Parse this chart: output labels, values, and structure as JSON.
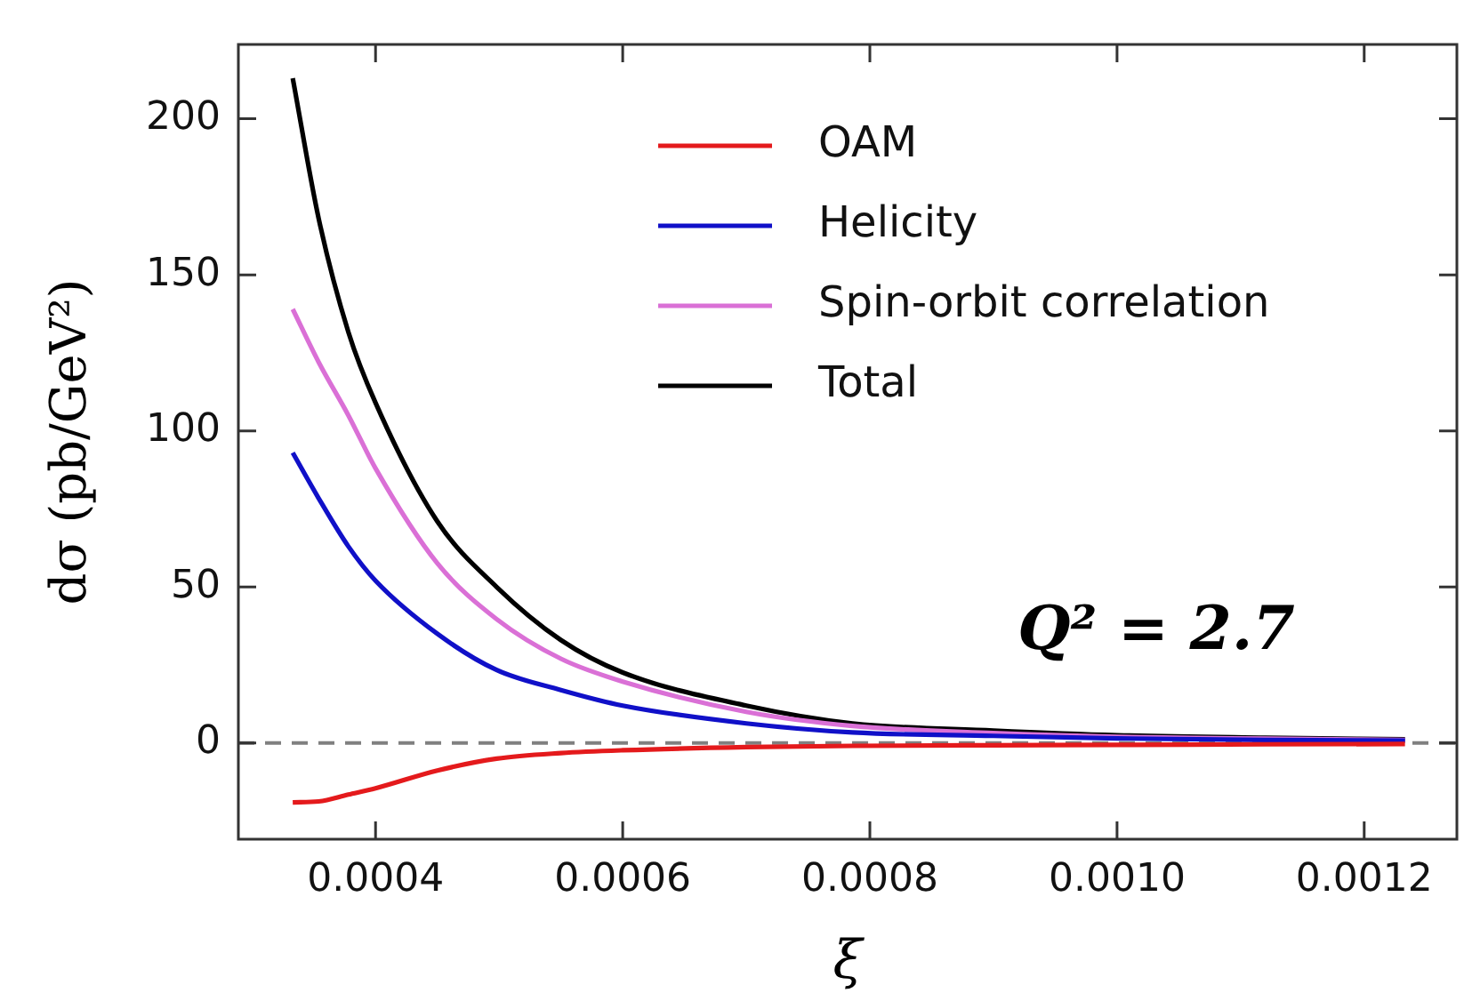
{
  "chart_data": {
    "type": "line",
    "xlabel": "ξ",
    "ylabel": "dσ (pb/GeV²)",
    "x": [
      0.000333,
      0.000354,
      0.000378,
      0.0004,
      0.00045,
      0.000498,
      0.00055,
      0.0006,
      0.0007,
      0.000786,
      0.0009,
      0.001,
      0.00112,
      0.001233
    ],
    "series": [
      {
        "name": "OAM",
        "color": "#e41a1c",
        "values": [
          -19,
          -18.7,
          -16.5,
          -14.5,
          -8.8,
          -5,
          -3.2,
          -2.3,
          -1.3,
          -0.9,
          -0.7,
          -0.6,
          -0.4,
          -0.3
        ]
      },
      {
        "name": "Helicity",
        "color": "#1010c8",
        "values": [
          93,
          78.4,
          63,
          52,
          35,
          23.4,
          17,
          12,
          6.3,
          3.4,
          2.3,
          1.5,
          1,
          0.8
        ]
      },
      {
        "name": "Spin-orbit correlation",
        "color": "#da70d6",
        "values": [
          139,
          122,
          105,
          88,
          57.6,
          39.7,
          27,
          19.7,
          10,
          5.5,
          3.2,
          2,
          1.4,
          1
        ]
      },
      {
        "name": "Total",
        "color": "#000000",
        "values": [
          213,
          168,
          131.7,
          109,
          71,
          50,
          33,
          22.6,
          12,
          6.3,
          4,
          2.5,
          1.7,
          1.2
        ]
      }
    ],
    "xlim": [
      0.000289,
      0.001275
    ],
    "xticks": [
      0.0004,
      0.0006,
      0.0008,
      {
        "value": 0.001,
        "label": "0.0010"
      },
      0.0012
    ],
    "ylim": [
      -30.8,
      223.8
    ],
    "yticks": [
      0,
      50,
      100,
      150,
      200
    ],
    "ref_lines": [
      {
        "axis": "y",
        "value": 0,
        "color": "#808080",
        "line_style": "dashed"
      }
    ],
    "legend": "top right",
    "marker": "none",
    "line_style": "solid",
    "annotations": [
      "Q² = 2.7"
    ]
  }
}
